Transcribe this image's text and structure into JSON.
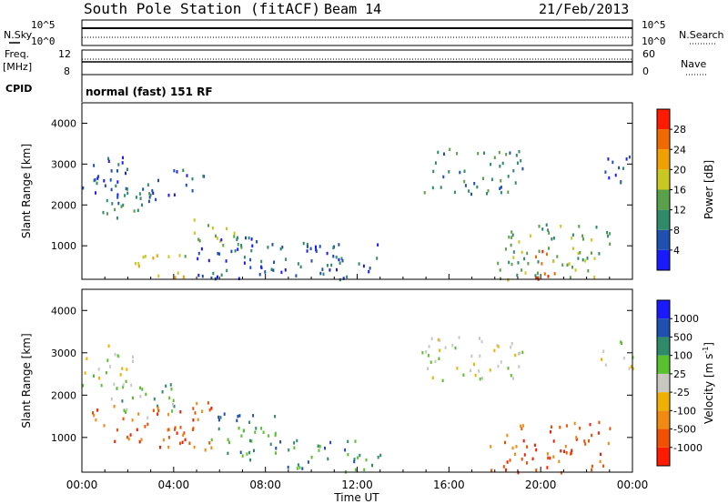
{
  "header": {
    "title": "South Pole Station (fitACF)",
    "beam": "Beam 14",
    "date": "21/Feb/2013"
  },
  "status_panels": {
    "nsky_label": "N.Sky",
    "nsearch_label": "N.Search",
    "nsky_ticks": [
      "10^5",
      "10^0"
    ],
    "nsearch_ticks": [
      "10^5",
      "10^0"
    ],
    "freq_label": "Freq.",
    "freq_unit": "[MHz]",
    "freq_ticks": [
      "12",
      "8"
    ],
    "nave_label": "Nave",
    "nave_ticks": [
      "60",
      "0"
    ],
    "cpid_label": "CPID",
    "cpid_text": "normal (fast) 151 RF"
  },
  "chart_data": [
    {
      "type": "heatmap",
      "name": "power",
      "ylabel": "Slant Range [km]",
      "ylim": [
        180,
        4500
      ],
      "yticks": [
        "1000",
        "2000",
        "3000",
        "4000"
      ],
      "colorbar_label": "Power [dB]",
      "colorbar_ticks": [
        "4",
        "8",
        "12",
        "16",
        "20",
        "24",
        "28"
      ],
      "colors": [
        "#1a1aff",
        "#1f4fb0",
        "#2f8a6a",
        "#5aa04a",
        "#c8c820",
        "#f0a000",
        "#f06a00",
        "#ff1a00"
      ],
      "regions": [
        {
          "t0": 0.0,
          "t1": 2.2,
          "r0": 2200,
          "r1": 3200,
          "level": 1
        },
        {
          "t0": 0.8,
          "t1": 3.0,
          "r0": 1600,
          "r1": 2600,
          "level": 2
        },
        {
          "t0": 2.8,
          "t1": 5.3,
          "r0": 2100,
          "r1": 2900,
          "level": 1
        },
        {
          "t0": 4.8,
          "t1": 7.0,
          "r0": 900,
          "r1": 1700,
          "level": 3
        },
        {
          "t0": 2.0,
          "t1": 4.5,
          "r0": 200,
          "r1": 800,
          "level": 4
        },
        {
          "t0": 5.0,
          "t1": 8.5,
          "r0": 200,
          "r1": 1300,
          "level": 1
        },
        {
          "t0": 8.5,
          "t1": 13.0,
          "r0": 200,
          "r1": 1100,
          "level": 1
        },
        {
          "t0": 14.8,
          "t1": 19.2,
          "r0": 2300,
          "r1": 3400,
          "level": 2
        },
        {
          "t0": 18.0,
          "t1": 23.0,
          "r0": 200,
          "r1": 1600,
          "level": 3
        },
        {
          "t0": 19.6,
          "t1": 20.6,
          "r0": 200,
          "r1": 900,
          "level": 7
        },
        {
          "t0": 22.6,
          "t1": 24.0,
          "r0": 2500,
          "r1": 3300,
          "level": 1
        }
      ]
    },
    {
      "type": "heatmap",
      "name": "velocity",
      "ylabel": "Slant Range [km]",
      "ylim": [
        180,
        4500
      ],
      "yticks": [
        "1000",
        "2000",
        "3000",
        "4000"
      ],
      "colorbar_label": "Velocity [m s",
      "colorbar_label_sup": "-1",
      "colorbar_label_end": "]",
      "colorbar_ticks": [
        "-1000",
        "-500",
        "-100",
        "-25",
        "25",
        "100",
        "500",
        "1000"
      ],
      "colors": [
        "#ff1a00",
        "#f05000",
        "#f08a10",
        "#f0b000",
        "#c8c8c0",
        "#5ac030",
        "#2f8a6a",
        "#1f4fb0",
        "#1a1aff"
      ],
      "regions": [
        {
          "t0": 0.0,
          "t1": 2.2,
          "r0": 2200,
          "r1": 3200,
          "level": 4
        },
        {
          "t0": 0.4,
          "t1": 3.0,
          "r0": 900,
          "r1": 1800,
          "level": 1
        },
        {
          "t0": 1.0,
          "t1": 4.0,
          "r0": 1500,
          "r1": 2300,
          "level": 5
        },
        {
          "t0": 3.0,
          "t1": 5.8,
          "r0": 700,
          "r1": 1900,
          "level": 1
        },
        {
          "t0": 5.6,
          "t1": 8.5,
          "r0": 500,
          "r1": 1600,
          "level": 6
        },
        {
          "t0": 8.5,
          "t1": 13.0,
          "r0": 200,
          "r1": 1000,
          "level": 6
        },
        {
          "t0": 14.8,
          "t1": 19.2,
          "r0": 2300,
          "r1": 3400,
          "level": 4
        },
        {
          "t0": 17.5,
          "t1": 23.0,
          "r0": 200,
          "r1": 1400,
          "level": 1
        },
        {
          "t0": 22.6,
          "t1": 24.0,
          "r0": 2500,
          "r1": 3300,
          "level": 4
        }
      ]
    }
  ],
  "x_axis": {
    "label": "Time UT",
    "xlim": [
      0,
      24
    ],
    "ticks": [
      "00:00",
      "04:00",
      "08:00",
      "12:00",
      "16:00",
      "20:00",
      "00:00"
    ]
  }
}
